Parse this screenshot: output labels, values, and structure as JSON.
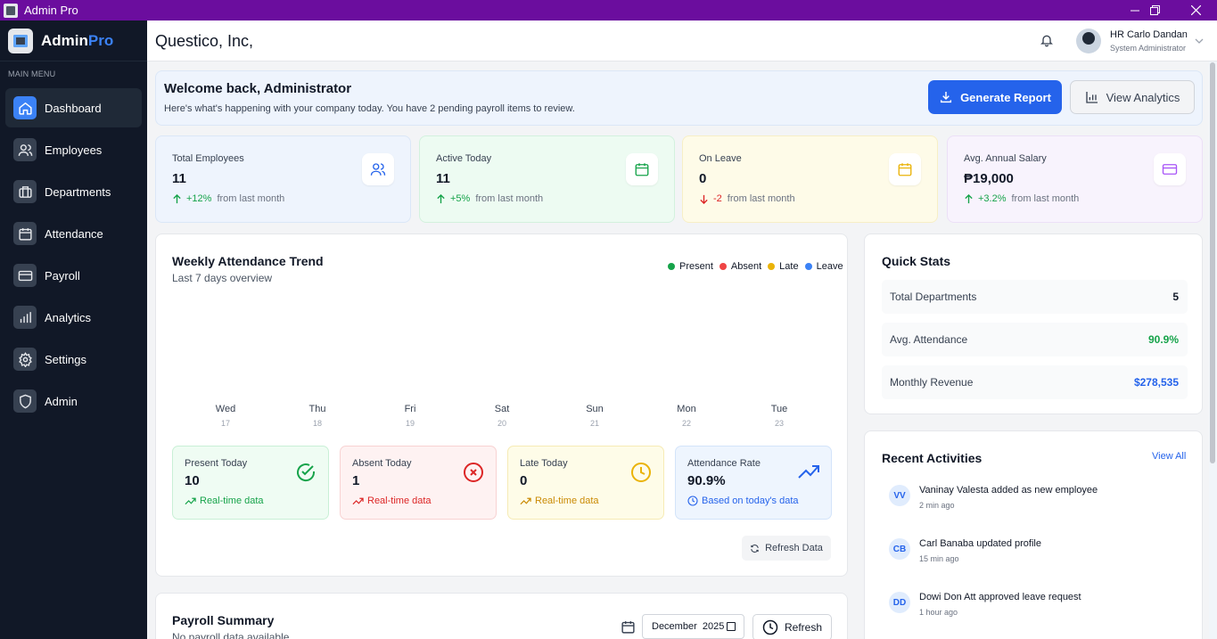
{
  "window": {
    "title": "Admin Pro"
  },
  "brand": {
    "name": "Admin",
    "accent": "Pro"
  },
  "sidebar": {
    "section_label": "MAIN MENU",
    "items": [
      {
        "label": "Dashboard",
        "icon": "home-icon",
        "active": true
      },
      {
        "label": "Employees",
        "icon": "users-icon"
      },
      {
        "label": "Departments",
        "icon": "briefcase-icon"
      },
      {
        "label": "Attendance",
        "icon": "calendar-icon"
      },
      {
        "label": "Payroll",
        "icon": "credit-card-icon"
      },
      {
        "label": "Analytics",
        "icon": "bar-chart-icon"
      },
      {
        "label": "Settings",
        "icon": "gear-icon"
      },
      {
        "label": "Admin",
        "icon": "shield-icon"
      }
    ]
  },
  "header": {
    "company": "Questico, Inc,",
    "user": {
      "name": "HR Carlo Dandan",
      "role": "System Administrator"
    }
  },
  "welcome": {
    "title": "Welcome back, Administrator",
    "subtitle": "Here's what's happening with your company today. You have 2 pending payroll items to review.",
    "generate_label": "Generate Report",
    "analytics_label": "View Analytics"
  },
  "stats": [
    {
      "label": "Total Employees",
      "value": "11",
      "change": "+12%",
      "suffix": "from last month",
      "direction": "up"
    },
    {
      "label": "Active Today",
      "value": "11",
      "change": "+5%",
      "suffix": "from last month",
      "direction": "up"
    },
    {
      "label": "On Leave",
      "value": "0",
      "change": "-2",
      "suffix": "from last month",
      "direction": "down"
    },
    {
      "label": "Avg. Annual Salary",
      "value": "₱19,000",
      "change": "+3.2%",
      "suffix": "from last month",
      "direction": "up"
    }
  ],
  "attendance": {
    "title": "Weekly Attendance Trend",
    "subtitle": "Last 7 days overview",
    "legend": [
      {
        "label": "Present",
        "color": "#16a34a"
      },
      {
        "label": "Absent",
        "color": "#ef4444"
      },
      {
        "label": "Late",
        "color": "#eab308"
      },
      {
        "label": "Leave",
        "color": "#3b82f6"
      }
    ],
    "days": [
      {
        "name": "Wed",
        "date": "17"
      },
      {
        "name": "Thu",
        "date": "18"
      },
      {
        "name": "Fri",
        "date": "19"
      },
      {
        "name": "Sat",
        "date": "20"
      },
      {
        "name": "Sun",
        "date": "21"
      },
      {
        "name": "Mon",
        "date": "22"
      },
      {
        "name": "Tue",
        "date": "23"
      }
    ],
    "cards": [
      {
        "label": "Present Today",
        "value": "10",
        "footer": "Real-time data"
      },
      {
        "label": "Absent Today",
        "value": "1",
        "footer": "Real-time data"
      },
      {
        "label": "Late Today",
        "value": "0",
        "footer": "Real-time data"
      },
      {
        "label": "Attendance Rate",
        "value": "90.9%",
        "footer": "Based on today's data"
      }
    ],
    "refresh_label": "Refresh Data"
  },
  "quick_stats": {
    "title": "Quick Stats",
    "rows": [
      {
        "label": "Total Departments",
        "value": "5"
      },
      {
        "label": "Avg. Attendance",
        "value": "90.9%"
      },
      {
        "label": "Monthly Revenue",
        "value": "$278,535"
      }
    ]
  },
  "activities": {
    "title": "Recent Activities",
    "view_all": "View All",
    "items": [
      {
        "initials": "VV",
        "text": "Vaninay Valesta added as new employee",
        "time": "2 min ago"
      },
      {
        "initials": "CB",
        "text": "Carl Banaba updated profile",
        "time": "15 min ago"
      },
      {
        "initials": "DD",
        "text": "Dowi Don Att approved leave request",
        "time": "1 hour ago"
      }
    ]
  },
  "payroll": {
    "title": "Payroll Summary",
    "subtitle": "No payroll data available",
    "month": "December  2025",
    "refresh_label": "Refresh"
  }
}
